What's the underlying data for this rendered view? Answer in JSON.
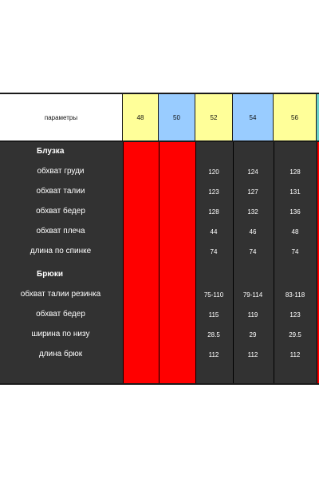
{
  "header": {
    "param_label": "параметры",
    "sizes": [
      "48",
      "50",
      "52",
      "54",
      "56"
    ],
    "size_colors": [
      "#ffff99",
      "#99ccff",
      "#ffff99",
      "#99ccff",
      "#ffff99"
    ]
  },
  "rows": [
    {
      "label": "Блузка",
      "section": true,
      "values": [
        "",
        "",
        ""
      ]
    },
    {
      "label": "обхват груди",
      "section": false,
      "values": [
        "120",
        "124",
        "128"
      ]
    },
    {
      "label": "обхват талии",
      "section": false,
      "values": [
        "123",
        "127",
        "131"
      ]
    },
    {
      "label": "обхват бедер",
      "section": false,
      "values": [
        "128",
        "132",
        "136"
      ]
    },
    {
      "label": "обхват плеча",
      "section": false,
      "values": [
        "44",
        "46",
        "48"
      ]
    },
    {
      "label": "длина по спинке",
      "section": false,
      "values": [
        "74",
        "74",
        "74"
      ]
    },
    {
      "label": "Брюки",
      "section": true,
      "values": [
        "",
        "",
        ""
      ]
    },
    {
      "label": "обхват талии резинка",
      "section": false,
      "values": [
        "75-110",
        "79-114",
        "83-118"
      ]
    },
    {
      "label": "обхват бедер",
      "section": false,
      "values": [
        "115",
        "119",
        "123"
      ]
    },
    {
      "label": "ширина по низу",
      "section": false,
      "values": [
        "28.5",
        "29",
        "29.5"
      ]
    },
    {
      "label": "длина брюк",
      "section": false,
      "values": [
        "112",
        "112",
        "112"
      ]
    }
  ],
  "colors": {
    "body_dark": "#323232",
    "unavailable": "#ff0000",
    "text_light": "#ffffff"
  }
}
